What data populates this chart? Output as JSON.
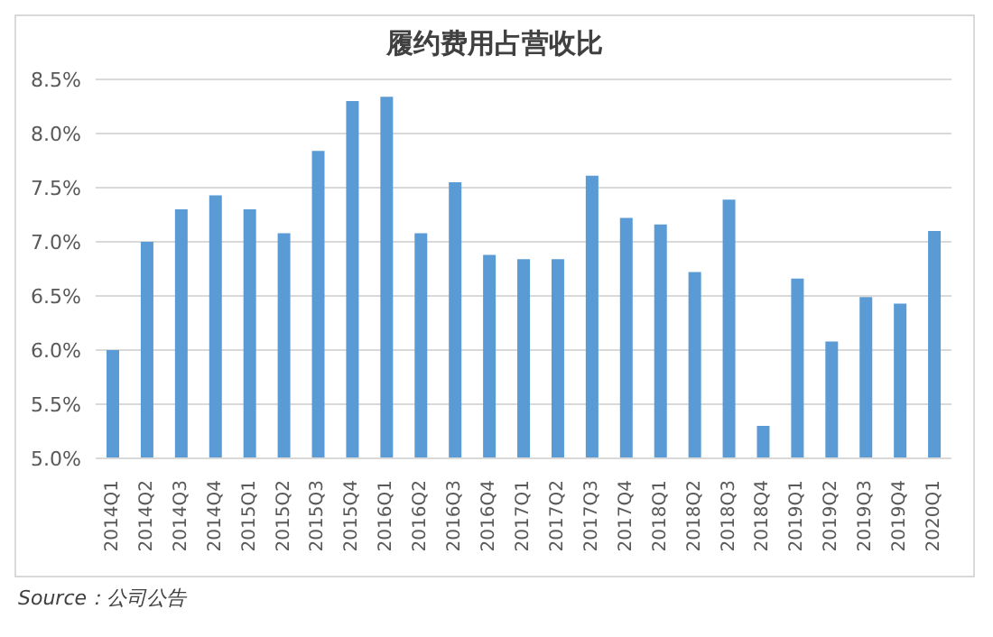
{
  "chart_data": {
    "type": "bar",
    "title": "履约费用占营收比",
    "categories": [
      "2014Q1",
      "2014Q2",
      "2014Q3",
      "2014Q4",
      "2015Q1",
      "2015Q2",
      "2015Q3",
      "2015Q4",
      "2016Q1",
      "2016Q2",
      "2016Q3",
      "2016Q4",
      "2017Q1",
      "2017Q2",
      "2017Q3",
      "2017Q4",
      "2018Q1",
      "2018Q2",
      "2018Q3",
      "2018Q4",
      "2019Q1",
      "2019Q2",
      "2019Q3",
      "2019Q4",
      "2020Q1"
    ],
    "values": [
      6.0,
      7.0,
      7.3,
      7.43,
      7.3,
      7.08,
      7.84,
      8.3,
      8.34,
      7.08,
      7.55,
      6.88,
      6.84,
      6.84,
      7.61,
      7.22,
      7.16,
      6.72,
      7.39,
      5.3,
      6.66,
      6.08,
      6.49,
      6.43,
      7.1
    ],
    "color": "#5b9bd5",
    "ylim": [
      5.0,
      8.5
    ],
    "yticks": [
      {
        "value": 5.0,
        "label": "5.0%"
      },
      {
        "value": 5.5,
        "label": "5.5%"
      },
      {
        "value": 6.0,
        "label": "6.0%"
      },
      {
        "value": 6.5,
        "label": "6.5%"
      },
      {
        "value": 7.0,
        "label": "7.0%"
      },
      {
        "value": 7.5,
        "label": "7.5%"
      },
      {
        "value": 8.0,
        "label": "8.0%"
      },
      {
        "value": 8.5,
        "label": "8.5%"
      }
    ],
    "grid": "y",
    "annotations": [
      "Source：公司公告"
    ]
  }
}
